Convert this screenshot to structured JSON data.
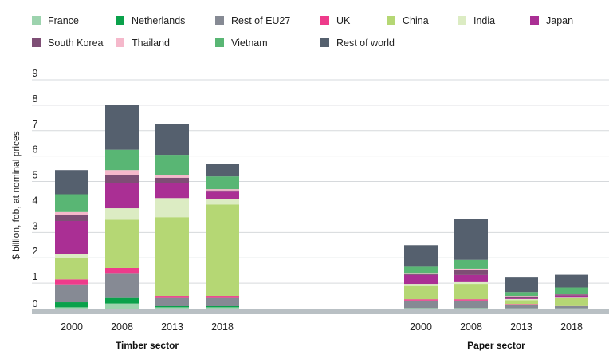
{
  "chart_data": {
    "type": "bar",
    "stacked": true,
    "ylabel": "$ billion, fob, at nominal prices",
    "ylim": [
      0,
      9
    ],
    "yticks": [
      0,
      1,
      2,
      3,
      4,
      5,
      6,
      7,
      8,
      9
    ],
    "grid": true,
    "legend_position": "top",
    "groups": [
      {
        "label": "Timber sector",
        "categories": [
          "2000",
          "2008",
          "2013",
          "2018"
        ]
      },
      {
        "label": "Paper sector",
        "categories": [
          "2000",
          "2008",
          "2013",
          "2018"
        ]
      }
    ],
    "series": [
      {
        "name": "France",
        "color": "#9dd3ae",
        "values": [
          0.05,
          0.2,
          0.05,
          0.05,
          0.02,
          0.02,
          0.01,
          0.01
        ]
      },
      {
        "name": "Netherlands",
        "color": "#0aa14b",
        "values": [
          0.2,
          0.25,
          0.05,
          0.05,
          0.0,
          0.0,
          0.0,
          0.0
        ]
      },
      {
        "name": "Rest of EU27",
        "color": "#868a94",
        "values": [
          0.7,
          0.95,
          0.35,
          0.35,
          0.3,
          0.3,
          0.15,
          0.1
        ]
      },
      {
        "name": "UK",
        "color": "#ee3b8b",
        "values": [
          0.2,
          0.2,
          0.05,
          0.05,
          0.05,
          0.05,
          0.02,
          0.02
        ]
      },
      {
        "name": "China",
        "color": "#b5d774",
        "values": [
          0.85,
          1.9,
          3.1,
          3.6,
          0.55,
          0.6,
          0.15,
          0.3
        ]
      },
      {
        "name": "India",
        "color": "#dcecc3",
        "values": [
          0.15,
          0.45,
          0.75,
          0.2,
          0.05,
          0.1,
          0.05,
          0.03
        ]
      },
      {
        "name": "Japan",
        "color": "#aa2f94",
        "values": [
          1.3,
          1.0,
          0.6,
          0.3,
          0.35,
          0.25,
          0.05,
          0.05
        ]
      },
      {
        "name": "South Korea",
        "color": "#7e4e75",
        "values": [
          0.25,
          0.3,
          0.2,
          0.05,
          0.05,
          0.2,
          0.05,
          0.05
        ]
      },
      {
        "name": "Thailand",
        "color": "#f5b8cb",
        "values": [
          0.1,
          0.2,
          0.1,
          0.05,
          0.03,
          0.05,
          0.02,
          0.02
        ]
      },
      {
        "name": "Vietnam",
        "color": "#59b674",
        "values": [
          0.7,
          0.8,
          0.8,
          0.5,
          0.25,
          0.35,
          0.15,
          0.25
        ]
      },
      {
        "name": "Rest of world",
        "color": "#55606e",
        "values": [
          0.95,
          1.75,
          1.2,
          0.5,
          0.85,
          1.6,
          0.6,
          0.5
        ]
      }
    ]
  }
}
